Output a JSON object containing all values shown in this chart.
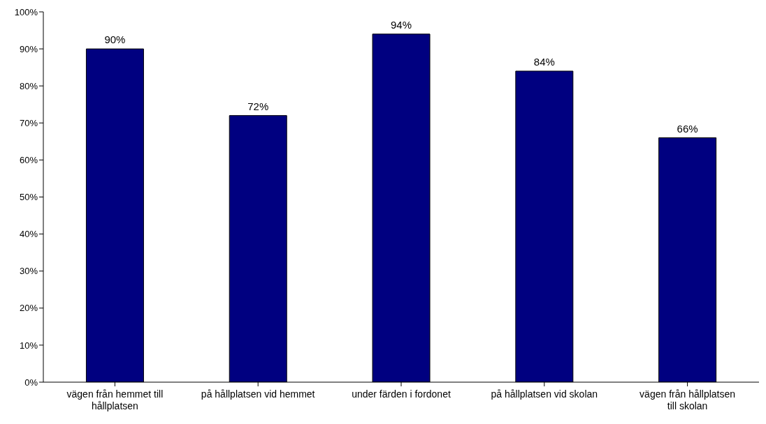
{
  "chart_data": {
    "type": "bar",
    "categories": [
      "vägen från hemmet till hållplatsen",
      "på hållplatsen vid hemmet",
      "under färden i fordonet",
      "på hållplatsen vid skolan",
      "vägen från hållplatsen till skolan"
    ],
    "values": [
      90,
      72,
      94,
      84,
      66
    ],
    "value_labels": [
      "90%",
      "72%",
      "94%",
      "84%",
      "66%"
    ],
    "color": "#000080",
    "ylim": [
      0,
      100
    ],
    "yticks": [
      {
        "value": 0,
        "label": "0%"
      },
      {
        "value": 10,
        "label": "10%"
      },
      {
        "value": 20,
        "label": "20%"
      },
      {
        "value": 30,
        "label": "30%"
      },
      {
        "value": 40,
        "label": "40%"
      },
      {
        "value": 50,
        "label": "50%"
      },
      {
        "value": 60,
        "label": "60%"
      },
      {
        "value": 70,
        "label": "70%"
      },
      {
        "value": 80,
        "label": "80%"
      },
      {
        "value": 90,
        "label": "90%"
      },
      {
        "value": 100,
        "label": "100%"
      }
    ],
    "grid": false,
    "legend": false
  }
}
